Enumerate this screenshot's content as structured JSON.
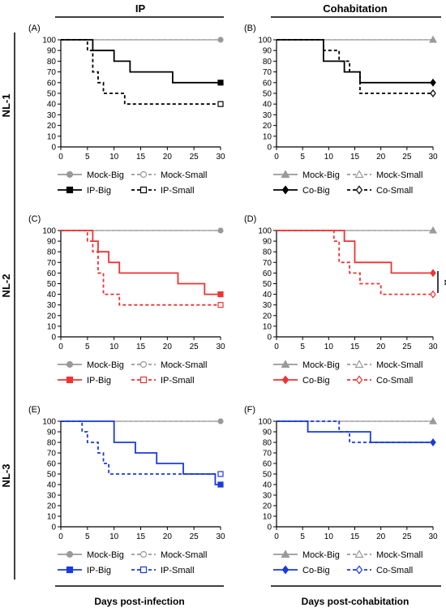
{
  "figure": {
    "col_headers": [
      "IP",
      "Cohabitation"
    ],
    "row_labels": [
      "NL-1",
      "NL-2",
      "NL-3"
    ],
    "bottom_labels": [
      "Days post-infection",
      "Days post-cohabitation"
    ],
    "colors": {
      "mock": "#9a9a9a",
      "nl1": "#000000",
      "nl2": "#ee3333",
      "nl3": "#1a3bdb"
    },
    "significance_marker": "**"
  },
  "chart_data": [
    {
      "type": "line",
      "panel": "(A)",
      "group": "NL-1",
      "mode": "IP",
      "xlim": [
        0,
        30
      ],
      "ylim": [
        0,
        100
      ],
      "xticks": [
        0,
        5,
        10,
        15,
        20,
        25,
        30
      ],
      "yticks": [
        0,
        10,
        20,
        30,
        40,
        50,
        60,
        70,
        80,
        90,
        100
      ],
      "series": [
        {
          "name": "Mock-Big",
          "x": [
            0,
            30
          ],
          "y": [
            100,
            100
          ],
          "color": "#9a9a9a",
          "dashed": false,
          "marker": "circle",
          "filled": true,
          "end_marker": true
        },
        {
          "name": "Mock-Small",
          "x": [
            0,
            30
          ],
          "y": [
            100,
            100
          ],
          "color": "#9a9a9a",
          "dashed": true,
          "marker": "circle",
          "filled": false,
          "end_marker": false
        },
        {
          "name": "IP-Big",
          "x": [
            0,
            6,
            10,
            13,
            21,
            30
          ],
          "y": [
            100,
            90,
            80,
            70,
            60,
            60
          ],
          "color": "#000000",
          "dashed": false,
          "marker": "square",
          "filled": true,
          "end_marker": true
        },
        {
          "name": "IP-Small",
          "x": [
            0,
            5,
            6,
            7,
            8,
            12,
            30
          ],
          "y": [
            100,
            90,
            70,
            60,
            50,
            40,
            40
          ],
          "color": "#000000",
          "dashed": true,
          "marker": "square",
          "filled": false,
          "end_marker": true
        }
      ]
    },
    {
      "type": "line",
      "panel": "(B)",
      "group": "NL-1",
      "mode": "Cohabitation",
      "xlim": [
        0,
        30
      ],
      "ylim": [
        0,
        100
      ],
      "xticks": [
        0,
        5,
        10,
        15,
        20,
        25,
        30
      ],
      "yticks": [
        0,
        10,
        20,
        30,
        40,
        50,
        60,
        70,
        80,
        90,
        100
      ],
      "series": [
        {
          "name": "Mock-Big",
          "x": [
            0,
            30
          ],
          "y": [
            100,
            100
          ],
          "color": "#9a9a9a",
          "dashed": false,
          "marker": "triangle",
          "filled": true,
          "end_marker": true
        },
        {
          "name": "Mock-Small",
          "x": [
            0,
            30
          ],
          "y": [
            100,
            100
          ],
          "color": "#9a9a9a",
          "dashed": true,
          "marker": "triangle",
          "filled": false,
          "end_marker": false
        },
        {
          "name": "Co-Big",
          "x": [
            0,
            9,
            13,
            16,
            27,
            30
          ],
          "y": [
            100,
            80,
            70,
            60,
            60,
            60
          ],
          "color": "#000000",
          "dashed": false,
          "marker": "diamond",
          "filled": true,
          "end_marker": true
        },
        {
          "name": "Co-Small",
          "x": [
            0,
            9,
            12,
            14,
            16,
            30
          ],
          "y": [
            100,
            90,
            80,
            70,
            50,
            50
          ],
          "color": "#000000",
          "dashed": true,
          "marker": "diamond",
          "filled": false,
          "end_marker": true
        }
      ]
    },
    {
      "type": "line",
      "panel": "(C)",
      "group": "NL-2",
      "mode": "IP",
      "xlim": [
        0,
        30
      ],
      "ylim": [
        0,
        100
      ],
      "xticks": [
        0,
        5,
        10,
        15,
        20,
        25,
        30
      ],
      "yticks": [
        0,
        10,
        20,
        30,
        40,
        50,
        60,
        70,
        80,
        90,
        100
      ],
      "series": [
        {
          "name": "Mock-Big",
          "x": [
            0,
            30
          ],
          "y": [
            100,
            100
          ],
          "color": "#9a9a9a",
          "dashed": false,
          "marker": "circle",
          "filled": true,
          "end_marker": true
        },
        {
          "name": "Mock-Small",
          "x": [
            0,
            30
          ],
          "y": [
            100,
            100
          ],
          "color": "#9a9a9a",
          "dashed": true,
          "marker": "circle",
          "filled": false,
          "end_marker": false
        },
        {
          "name": "IP-Big",
          "x": [
            0,
            6,
            7,
            9,
            11,
            22,
            27,
            30
          ],
          "y": [
            100,
            90,
            80,
            70,
            60,
            50,
            40,
            40
          ],
          "color": "#ee3333",
          "dashed": false,
          "marker": "square",
          "filled": true,
          "end_marker": true
        },
        {
          "name": "IP-Small",
          "x": [
            0,
            5,
            6,
            7,
            8,
            11,
            30
          ],
          "y": [
            100,
            90,
            80,
            60,
            40,
            30,
            30
          ],
          "color": "#ee3333",
          "dashed": true,
          "marker": "square",
          "filled": false,
          "end_marker": true
        }
      ]
    },
    {
      "type": "line",
      "panel": "(D)",
      "group": "NL-2",
      "mode": "Cohabitation",
      "xlim": [
        0,
        30
      ],
      "ylim": [
        0,
        100
      ],
      "xticks": [
        0,
        5,
        10,
        15,
        20,
        25,
        30
      ],
      "yticks": [
        0,
        10,
        20,
        30,
        40,
        50,
        60,
        70,
        80,
        90,
        100
      ],
      "series": [
        {
          "name": "Mock-Big",
          "x": [
            0,
            30
          ],
          "y": [
            100,
            100
          ],
          "color": "#9a9a9a",
          "dashed": false,
          "marker": "triangle",
          "filled": true,
          "end_marker": true
        },
        {
          "name": "Mock-Small",
          "x": [
            0,
            30
          ],
          "y": [
            100,
            100
          ],
          "color": "#9a9a9a",
          "dashed": true,
          "marker": "triangle",
          "filled": false,
          "end_marker": false
        },
        {
          "name": "Co-Big",
          "x": [
            0,
            13,
            15,
            22,
            30
          ],
          "y": [
            100,
            90,
            70,
            60,
            60
          ],
          "color": "#ee3333",
          "dashed": false,
          "marker": "diamond",
          "filled": true,
          "end_marker": true
        },
        {
          "name": "Co-Small",
          "x": [
            0,
            11,
            12,
            14,
            16,
            20,
            30
          ],
          "y": [
            100,
            90,
            70,
            60,
            50,
            40,
            40
          ],
          "color": "#ee3333",
          "dashed": true,
          "marker": "diamond",
          "filled": false,
          "end_marker": true
        }
      ]
    },
    {
      "type": "line",
      "panel": "(E)",
      "group": "NL-3",
      "mode": "IP",
      "xlim": [
        0,
        30
      ],
      "ylim": [
        0,
        100
      ],
      "xticks": [
        0,
        5,
        10,
        15,
        20,
        25,
        30
      ],
      "yticks": [
        0,
        10,
        20,
        30,
        40,
        50,
        60,
        70,
        80,
        90,
        100
      ],
      "series": [
        {
          "name": "Mock-Big",
          "x": [
            0,
            30
          ],
          "y": [
            100,
            100
          ],
          "color": "#9a9a9a",
          "dashed": false,
          "marker": "circle",
          "filled": true,
          "end_marker": true
        },
        {
          "name": "Mock-Small",
          "x": [
            0,
            30
          ],
          "y": [
            100,
            100
          ],
          "color": "#9a9a9a",
          "dashed": true,
          "marker": "circle",
          "filled": false,
          "end_marker": false
        },
        {
          "name": "IP-Big",
          "x": [
            0,
            10,
            14,
            18,
            23,
            29,
            30
          ],
          "y": [
            100,
            80,
            70,
            60,
            50,
            40,
            40
          ],
          "color": "#1a3bdb",
          "dashed": false,
          "marker": "square",
          "filled": true,
          "end_marker": true
        },
        {
          "name": "IP-Small",
          "x": [
            0,
            4,
            5,
            7,
            8,
            9,
            29,
            30
          ],
          "y": [
            100,
            90,
            80,
            70,
            60,
            50,
            50,
            50
          ],
          "color": "#1a3bdb",
          "dashed": true,
          "marker": "square",
          "filled": false,
          "end_marker": true
        }
      ]
    },
    {
      "type": "line",
      "panel": "(F)",
      "group": "NL-3",
      "mode": "Cohabitation",
      "xlim": [
        0,
        30
      ],
      "ylim": [
        0,
        100
      ],
      "xticks": [
        0,
        5,
        10,
        15,
        20,
        25,
        30
      ],
      "yticks": [
        0,
        10,
        20,
        30,
        40,
        50,
        60,
        70,
        80,
        90,
        100
      ],
      "series": [
        {
          "name": "Mock-Big",
          "x": [
            0,
            30
          ],
          "y": [
            100,
            100
          ],
          "color": "#9a9a9a",
          "dashed": false,
          "marker": "triangle",
          "filled": true,
          "end_marker": true
        },
        {
          "name": "Mock-Small",
          "x": [
            0,
            30
          ],
          "y": [
            100,
            100
          ],
          "color": "#9a9a9a",
          "dashed": true,
          "marker": "triangle",
          "filled": false,
          "end_marker": false
        },
        {
          "name": "Co-Big",
          "x": [
            0,
            6,
            18,
            30
          ],
          "y": [
            100,
            90,
            80,
            80
          ],
          "color": "#1a3bdb",
          "dashed": false,
          "marker": "diamond",
          "filled": true,
          "end_marker": true
        },
        {
          "name": "Co-Small",
          "x": [
            0,
            12,
            14,
            30
          ],
          "y": [
            100,
            90,
            80,
            80
          ],
          "color": "#1a3bdb",
          "dashed": true,
          "marker": "diamond",
          "filled": false,
          "end_marker": false
        }
      ]
    }
  ]
}
